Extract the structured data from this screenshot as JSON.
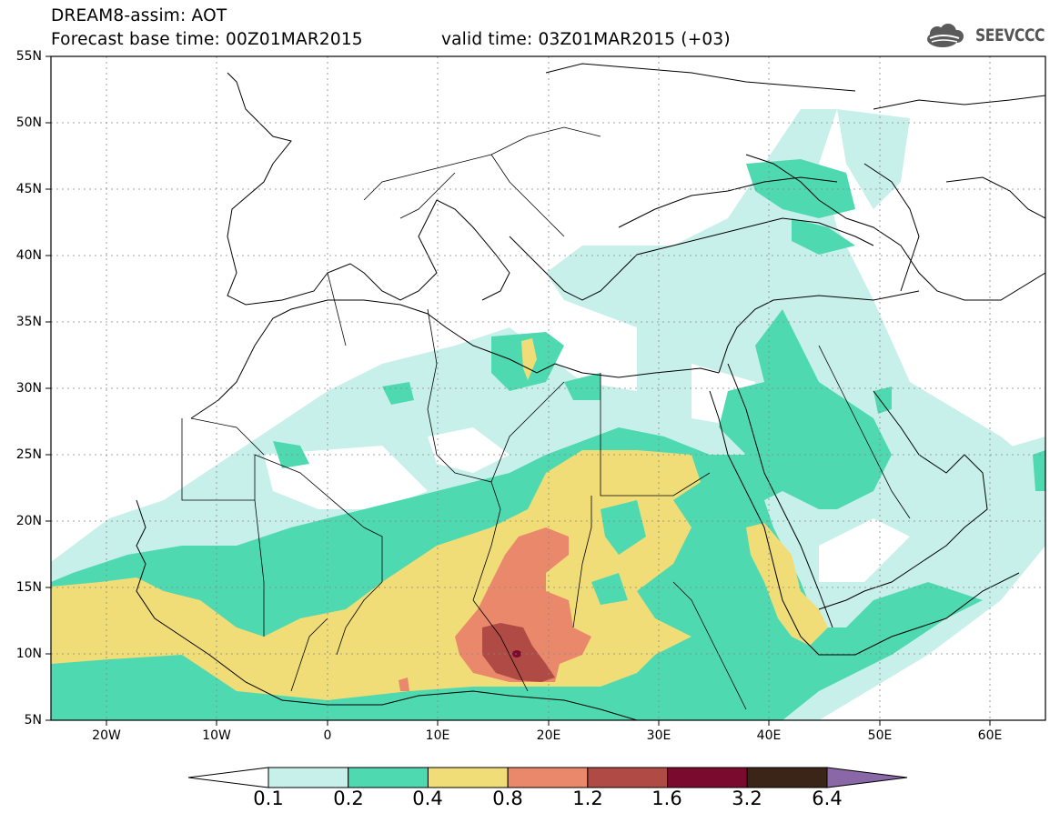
{
  "header": {
    "title_line1": "DREAM8-assim: AOT",
    "title_line2_left": "Forecast base time: 00Z01MAR2015",
    "title_line2_right": "valid time: 03Z01MAR2015 (+03)",
    "logo_text": "SEEVCCC",
    "logo_icon": "cloud-icon"
  },
  "map": {
    "lon_range": [
      -25,
      65
    ],
    "lat_range": [
      5,
      55
    ],
    "lat_labels": [
      "55N",
      "50N",
      "45N",
      "40N",
      "35N",
      "30N",
      "25N",
      "20N",
      "15N",
      "10N",
      "5N"
    ],
    "lon_labels": [
      "20W",
      "10W",
      "0",
      "10E",
      "20E",
      "30E",
      "40E",
      "50E",
      "60E"
    ],
    "grid": "dotted",
    "background": "#ffffff"
  },
  "colorbar": {
    "labels": [
      "0.1",
      "0.2",
      "0.4",
      "0.8",
      "1.2",
      "1.6",
      "3.2",
      "6.4"
    ],
    "colors": [
      "#ffffff",
      "#c8f0ea",
      "#4fd9b0",
      "#f0dd78",
      "#e9886a",
      "#b04a44",
      "#7a0a2e",
      "#3b2418",
      "#8a68a8"
    ],
    "extend": "both"
  }
}
